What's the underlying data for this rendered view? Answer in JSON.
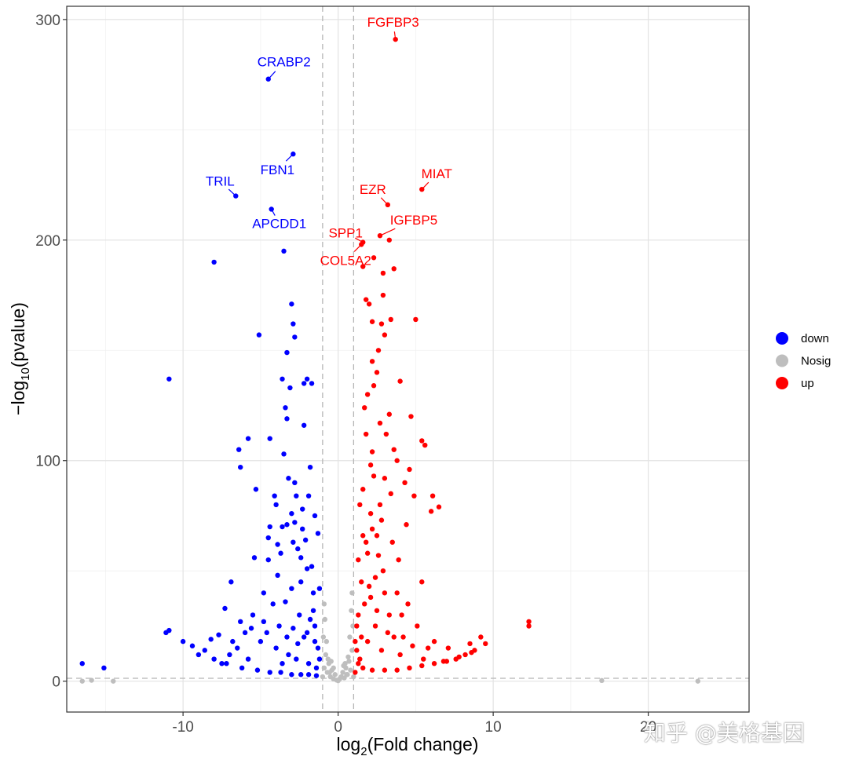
{
  "chart_data": {
    "type": "scatter",
    "title": "",
    "xlabel": {
      "base": "log",
      "sub": "2",
      "rest": "(Fold change)"
    },
    "ylabel": {
      "pre": "−log",
      "sub": "10",
      "rest": "(pvalue)"
    },
    "xlim": [
      -17.5,
      26.5
    ],
    "ylim": [
      -14,
      306
    ],
    "x_ticks": [
      -10,
      0,
      10,
      20
    ],
    "y_ticks": [
      0,
      100,
      200,
      300
    ],
    "grid": true,
    "thresholds": {
      "x": [
        -1,
        1
      ],
      "y": 1.3
    },
    "legend": {
      "position": "right",
      "entries": [
        {
          "name": "down",
          "color": "#0000ff"
        },
        {
          "name": "Nosig",
          "color": "#bebebe"
        },
        {
          "name": "up",
          "color": "#ff0000"
        }
      ]
    },
    "labeled_genes": [
      {
        "gene": "CRABP2",
        "x": -4.5,
        "y": 273,
        "group": "down"
      },
      {
        "gene": "FBN1",
        "x": -2.9,
        "y": 239,
        "group": "down"
      },
      {
        "gene": "TRIL",
        "x": -6.6,
        "y": 220,
        "group": "down"
      },
      {
        "gene": "APCDD1",
        "x": -4.3,
        "y": 214,
        "group": "down"
      },
      {
        "gene": "FGFBP3",
        "x": 3.7,
        "y": 291,
        "group": "up"
      },
      {
        "gene": "MIAT",
        "x": 5.4,
        "y": 223,
        "group": "up"
      },
      {
        "gene": "EZR",
        "x": 3.2,
        "y": 216,
        "group": "up"
      },
      {
        "gene": "SPP1",
        "x": 1.6,
        "y": 199,
        "group": "up"
      },
      {
        "gene": "IGFBP5",
        "x": 2.7,
        "y": 202,
        "group": "up"
      },
      {
        "gene": "COL5A2",
        "x": 1.5,
        "y": 198,
        "group": "up"
      }
    ],
    "series": [
      {
        "name": "down",
        "color": "#0000ff",
        "points": [
          [
            -3.5,
            195
          ],
          [
            -8,
            190
          ],
          [
            -10.9,
            137
          ],
          [
            -3,
            171
          ],
          [
            -2.9,
            162
          ],
          [
            -2.8,
            156
          ],
          [
            -5.1,
            157
          ],
          [
            -3.3,
            149
          ],
          [
            -3.6,
            137
          ],
          [
            -3.1,
            133
          ],
          [
            -2.2,
            135
          ],
          [
            -2,
            137
          ],
          [
            -1.7,
            135
          ],
          [
            -3.4,
            124
          ],
          [
            -3.3,
            119
          ],
          [
            -2.2,
            116
          ],
          [
            -5.8,
            110
          ],
          [
            -4.4,
            110
          ],
          [
            -6.4,
            105
          ],
          [
            -3.5,
            103
          ],
          [
            -6.3,
            97
          ],
          [
            -1.8,
            97
          ],
          [
            -3.2,
            92
          ],
          [
            -2.8,
            90
          ],
          [
            -5.3,
            87
          ],
          [
            -4.1,
            84
          ],
          [
            -4.0,
            80
          ],
          [
            -2.3,
            78
          ],
          [
            -1.5,
            75
          ],
          [
            -2.8,
            72
          ],
          [
            -3.3,
            71
          ],
          [
            -4.4,
            70
          ],
          [
            -2.9,
            63
          ],
          [
            -1.3,
            67
          ],
          [
            -3.7,
            58
          ],
          [
            -5.4,
            56
          ],
          [
            -6.9,
            45
          ],
          [
            -7.3,
            33
          ],
          [
            -7.7,
            21
          ],
          [
            -8.2,
            19
          ],
          [
            -10.9,
            23
          ],
          [
            -11.1,
            22
          ],
          [
            -16.5,
            8
          ],
          [
            -15.1,
            6
          ],
          [
            -7.5,
            8
          ],
          [
            -4.5,
            55
          ],
          [
            -2.6,
            60
          ],
          [
            -3.9,
            48
          ],
          [
            -2.0,
            51
          ],
          [
            -1.6,
            40
          ],
          [
            -4.8,
            40
          ],
          [
            -5.5,
            30
          ],
          [
            -6.0,
            22
          ],
          [
            -6.5,
            15
          ],
          [
            -7.0,
            12
          ],
          [
            -4.2,
            35
          ],
          [
            -3.0,
            42
          ],
          [
            -2.5,
            30
          ],
          [
            -1.8,
            28
          ],
          [
            -3.8,
            25
          ],
          [
            -2.2,
            20
          ],
          [
            -1.5,
            18
          ],
          [
            -5.0,
            18
          ],
          [
            -4.0,
            15
          ],
          [
            -3.2,
            12
          ],
          [
            -2.7,
            10
          ],
          [
            -1.9,
            8
          ],
          [
            -1.4,
            6
          ],
          [
            -3.6,
            8
          ],
          [
            -5.8,
            10
          ],
          [
            -2.4,
            45
          ],
          [
            -1.7,
            52
          ],
          [
            -3.4,
            36
          ],
          [
            -2.1,
            64
          ],
          [
            -1.2,
            42
          ],
          [
            -2.9,
            24
          ],
          [
            -4.6,
            22
          ],
          [
            -6.8,
            18
          ],
          [
            -8.6,
            14
          ],
          [
            -9.4,
            16
          ],
          [
            -10.0,
            18
          ],
          [
            -9.0,
            12
          ],
          [
            -8.0,
            10
          ],
          [
            -7.2,
            8
          ],
          [
            -6.2,
            6
          ],
          [
            -5.2,
            5
          ],
          [
            -4.4,
            4
          ],
          [
            -3.7,
            4
          ],
          [
            -3.0,
            3
          ],
          [
            -2.4,
            3
          ],
          [
            -1.9,
            3
          ],
          [
            -1.4,
            2.5
          ],
          [
            -1.2,
            10
          ],
          [
            -1.3,
            15
          ],
          [
            -1.5,
            25
          ],
          [
            -1.6,
            32
          ],
          [
            -2.0,
            22
          ],
          [
            -2.6,
            17
          ],
          [
            -3.3,
            20
          ],
          [
            -4.8,
            27
          ],
          [
            -5.6,
            24
          ],
          [
            -6.3,
            27
          ],
          [
            -3.9,
            62
          ],
          [
            -2.3,
            69
          ],
          [
            -2.7,
            84
          ],
          [
            -1.9,
            84
          ],
          [
            -3.0,
            76
          ],
          [
            -4.5,
            65
          ],
          [
            -3.6,
            70
          ],
          [
            -2.4,
            56
          ]
        ]
      },
      {
        "name": "Nosig",
        "color": "#bebebe",
        "points": [
          [
            -16.5,
            0
          ],
          [
            -15.9,
            0.4
          ],
          [
            -14.5,
            0
          ],
          [
            17.0,
            0.3
          ],
          [
            23.2,
            0
          ],
          [
            -0.9,
            6
          ],
          [
            -0.8,
            12
          ],
          [
            -0.7,
            4
          ],
          [
            -0.6,
            8
          ],
          [
            -0.5,
            2
          ],
          [
            -0.4,
            5
          ],
          [
            -0.3,
            1
          ],
          [
            -0.2,
            3
          ],
          [
            -0.1,
            0.5
          ],
          [
            0,
            0.2
          ],
          [
            0.1,
            1
          ],
          [
            0.2,
            2
          ],
          [
            0.3,
            4
          ],
          [
            0.4,
            1.5
          ],
          [
            0.5,
            6
          ],
          [
            0.6,
            3
          ],
          [
            0.7,
            9
          ],
          [
            0.8,
            5
          ],
          [
            0.9,
            14
          ],
          [
            -0.95,
            20
          ],
          [
            -0.85,
            28
          ],
          [
            -0.9,
            35
          ],
          [
            0.95,
            25
          ],
          [
            0.85,
            32
          ],
          [
            0.9,
            40
          ],
          [
            0.75,
            20
          ],
          [
            -0.75,
            18
          ],
          [
            -0.65,
            10
          ],
          [
            0.65,
            11
          ],
          [
            -0.55,
            4
          ],
          [
            0.55,
            3
          ],
          [
            -1.0,
            2
          ],
          [
            1.0,
            2
          ],
          [
            -0.3,
            6
          ],
          [
            0.35,
            7
          ],
          [
            -0.45,
            9
          ],
          [
            0.45,
            8
          ]
        ]
      },
      {
        "name": "up",
        "color": "#ff0000",
        "points": [
          [
            1.6,
            188
          ],
          [
            2.3,
            192
          ],
          [
            2.9,
            185
          ],
          [
            3.6,
            187
          ],
          [
            3.3,
            200
          ],
          [
            1.8,
            173
          ],
          [
            2.0,
            171
          ],
          [
            2.2,
            163
          ],
          [
            3.4,
            164
          ],
          [
            5.0,
            164
          ],
          [
            2.8,
            162
          ],
          [
            3.0,
            157
          ],
          [
            2.6,
            150
          ],
          [
            2.2,
            145
          ],
          [
            4.0,
            136
          ],
          [
            2.3,
            134
          ],
          [
            1.7,
            124
          ],
          [
            3.3,
            121
          ],
          [
            4.7,
            120
          ],
          [
            2.7,
            117
          ],
          [
            5.4,
            109
          ],
          [
            5.6,
            107
          ],
          [
            1.8,
            112
          ],
          [
            3.1,
            112
          ],
          [
            2.2,
            104
          ],
          [
            3.8,
            100
          ],
          [
            4.6,
            96
          ],
          [
            2.3,
            93
          ],
          [
            3.0,
            92
          ],
          [
            1.6,
            87
          ],
          [
            1.4,
            80
          ],
          [
            4.9,
            84
          ],
          [
            6.1,
            84
          ],
          [
            6.5,
            79
          ],
          [
            2.1,
            76
          ],
          [
            6.0,
            77
          ],
          [
            4.4,
            71
          ],
          [
            2.5,
            66
          ],
          [
            3.5,
            63
          ],
          [
            1.8,
            63
          ],
          [
            2.6,
            57
          ],
          [
            5.4,
            45
          ],
          [
            2.9,
            50
          ],
          [
            3.8,
            40
          ],
          [
            1.5,
            45
          ],
          [
            4.5,
            35
          ],
          [
            2.1,
            38
          ],
          [
            5.1,
            25
          ],
          [
            6.2,
            18
          ],
          [
            7.1,
            15
          ],
          [
            8.5,
            17
          ],
          [
            9.2,
            20
          ],
          [
            12.3,
            27
          ],
          [
            12.3,
            25
          ],
          [
            1.3,
            30
          ],
          [
            2.4,
            25
          ],
          [
            3.2,
            22
          ],
          [
            1.9,
            18
          ],
          [
            2.8,
            14
          ],
          [
            4.0,
            12
          ],
          [
            5.5,
            10
          ],
          [
            6.8,
            9
          ],
          [
            7.8,
            11
          ],
          [
            8.8,
            14
          ],
          [
            9.5,
            17
          ],
          [
            1.4,
            10
          ],
          [
            1.6,
            6
          ],
          [
            2.2,
            5
          ],
          [
            3.0,
            5
          ],
          [
            3.8,
            5
          ],
          [
            4.6,
            6
          ],
          [
            5.4,
            7
          ],
          [
            6.2,
            8
          ],
          [
            7.0,
            9
          ],
          [
            7.6,
            10
          ],
          [
            8.2,
            12
          ],
          [
            8.6,
            13
          ],
          [
            1.2,
            14
          ],
          [
            1.5,
            20
          ],
          [
            1.7,
            35
          ],
          [
            2.0,
            43
          ],
          [
            2.5,
            32
          ],
          [
            3.3,
            30
          ],
          [
            3.6,
            20
          ],
          [
            4.2,
            20
          ],
          [
            4.8,
            16
          ],
          [
            5.8,
            15
          ],
          [
            1.3,
            55
          ],
          [
            1.9,
            58
          ],
          [
            2.2,
            69
          ],
          [
            2.8,
            73
          ],
          [
            3.9,
            55
          ],
          [
            4.1,
            30
          ],
          [
            3.0,
            40
          ],
          [
            2.4,
            47
          ],
          [
            1.6,
            66
          ],
          [
            2.7,
            80
          ],
          [
            3.4,
            85
          ],
          [
            4.3,
            90
          ],
          [
            2.1,
            98
          ],
          [
            3.6,
            105
          ],
          [
            1.9,
            130
          ],
          [
            2.5,
            140
          ],
          [
            2.9,
            175
          ],
          [
            1.1,
            4
          ],
          [
            1.1,
            18
          ],
          [
            1.2,
            25
          ],
          [
            1.3,
            8
          ]
        ]
      }
    ]
  },
  "watermark": "知乎 @美格基因"
}
